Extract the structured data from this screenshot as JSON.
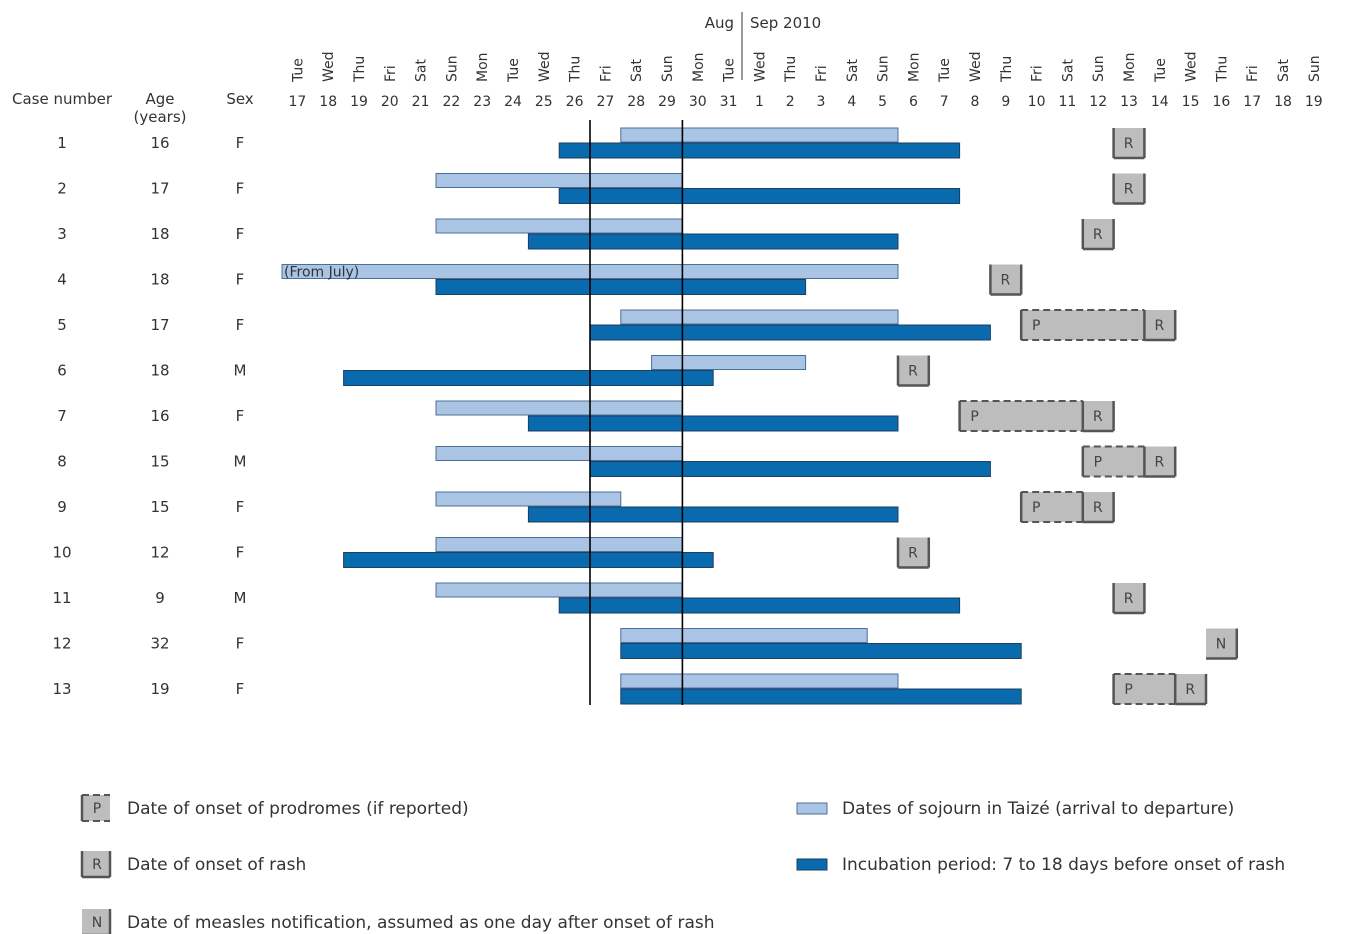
{
  "chart_data": {
    "type": "gantt",
    "month_labels": [
      "Aug",
      "Sep 2010"
    ],
    "columns": {
      "case": "Case number",
      "age": "Age\n(years)",
      "sex": "Sex"
    },
    "days": [
      {
        "wd": "Tue",
        "d": "17"
      },
      {
        "wd": "Wed",
        "d": "18"
      },
      {
        "wd": "Thu",
        "d": "19"
      },
      {
        "wd": "Fri",
        "d": "20"
      },
      {
        "wd": "Sat",
        "d": "21"
      },
      {
        "wd": "Sun",
        "d": "22"
      },
      {
        "wd": "Mon",
        "d": "23"
      },
      {
        "wd": "Tue",
        "d": "24"
      },
      {
        "wd": "Wed",
        "d": "25"
      },
      {
        "wd": "Thu",
        "d": "26"
      },
      {
        "wd": "Fri",
        "d": "27"
      },
      {
        "wd": "Sat",
        "d": "28"
      },
      {
        "wd": "Sun",
        "d": "29"
      },
      {
        "wd": "Mon",
        "d": "30"
      },
      {
        "wd": "Tue",
        "d": "31"
      },
      {
        "wd": "Wed",
        "d": "1"
      },
      {
        "wd": "Thu",
        "d": "2"
      },
      {
        "wd": "Fri",
        "d": "3"
      },
      {
        "wd": "Sat",
        "d": "4"
      },
      {
        "wd": "Sun",
        "d": "5"
      },
      {
        "wd": "Mon",
        "d": "6"
      },
      {
        "wd": "Tue",
        "d": "7"
      },
      {
        "wd": "Wed",
        "d": "8"
      },
      {
        "wd": "Thu",
        "d": "9"
      },
      {
        "wd": "Fri",
        "d": "10"
      },
      {
        "wd": "Sat",
        "d": "11"
      },
      {
        "wd": "Sun",
        "d": "12"
      },
      {
        "wd": "Mon",
        "d": "13"
      },
      {
        "wd": "Tue",
        "d": "14"
      },
      {
        "wd": "Wed",
        "d": "15"
      },
      {
        "wd": "Thu",
        "d": "16"
      },
      {
        "wd": "Fri",
        "d": "17"
      },
      {
        "wd": "Sat",
        "d": "18"
      },
      {
        "wd": "Sun",
        "d": "19"
      }
    ],
    "reference_lines_between_days": [
      [
        9,
        10
      ],
      [
        12,
        13
      ]
    ],
    "cases": [
      {
        "case": "1",
        "age": "16",
        "sex": "F",
        "sojourn": [
          11,
          19
        ],
        "incubation": [
          9,
          21
        ],
        "events": [
          {
            "type": "R",
            "day": 27
          }
        ]
      },
      {
        "case": "2",
        "age": "17",
        "sex": "F",
        "sojourn": [
          5,
          12
        ],
        "incubation": [
          9,
          21
        ],
        "events": [
          {
            "type": "R",
            "day": 27
          }
        ]
      },
      {
        "case": "3",
        "age": "18",
        "sex": "F",
        "sojourn": [
          5,
          12
        ],
        "incubation": [
          8,
          19
        ],
        "events": [
          {
            "type": "R",
            "day": 26
          }
        ]
      },
      {
        "case": "4",
        "age": "18",
        "sex": "F",
        "sojourn": [
          0,
          19
        ],
        "sojourn_note": "(From July)",
        "incubation": [
          5,
          16
        ],
        "events": [
          {
            "type": "R",
            "day": 23
          }
        ]
      },
      {
        "case": "5",
        "age": "17",
        "sex": "F",
        "sojourn": [
          11,
          19
        ],
        "incubation": [
          10,
          22
        ],
        "events": [
          {
            "type": "P",
            "day": 24,
            "to": 27
          },
          {
            "type": "R",
            "day": 28
          }
        ]
      },
      {
        "case": "6",
        "age": "18",
        "sex": "M",
        "sojourn": [
          12,
          16
        ],
        "incubation": [
          2,
          13
        ],
        "events": [
          {
            "type": "R",
            "day": 20
          }
        ]
      },
      {
        "case": "7",
        "age": "16",
        "sex": "F",
        "sojourn": [
          5,
          12
        ],
        "incubation": [
          8,
          19
        ],
        "events": [
          {
            "type": "P",
            "day": 22,
            "to": 25
          },
          {
            "type": "R",
            "day": 26
          }
        ]
      },
      {
        "case": "8",
        "age": "15",
        "sex": "M",
        "sojourn": [
          5,
          12
        ],
        "incubation": [
          10,
          22
        ],
        "events": [
          {
            "type": "P",
            "day": 26,
            "to": 27
          },
          {
            "type": "R",
            "day": 28
          }
        ]
      },
      {
        "case": "9",
        "age": "15",
        "sex": "F",
        "sojourn": [
          5,
          10
        ],
        "incubation": [
          8,
          19
        ],
        "events": [
          {
            "type": "P",
            "day": 24,
            "to": 25
          },
          {
            "type": "R",
            "day": 26
          }
        ]
      },
      {
        "case": "10",
        "age": "12",
        "sex": "F",
        "sojourn": [
          5,
          12
        ],
        "incubation": [
          2,
          13
        ],
        "events": [
          {
            "type": "R",
            "day": 20
          }
        ]
      },
      {
        "case": "11",
        "age": "9",
        "sex": "M",
        "sojourn": [
          5,
          12
        ],
        "incubation": [
          9,
          21
        ],
        "events": [
          {
            "type": "R",
            "day": 27
          }
        ]
      },
      {
        "case": "12",
        "age": "32",
        "sex": "F",
        "sojourn": [
          11,
          18
        ],
        "incubation": [
          11,
          23
        ],
        "events": [
          {
            "type": "N",
            "day": 30
          }
        ]
      },
      {
        "case": "13",
        "age": "19",
        "sex": "F",
        "sojourn": [
          11,
          19
        ],
        "incubation": [
          11,
          23
        ],
        "events": [
          {
            "type": "P",
            "day": 27,
            "to": 28
          },
          {
            "type": "R",
            "day": 29
          }
        ]
      }
    ],
    "legend": [
      {
        "key": "P",
        "label": "Date of onset of prodromes (if reported)"
      },
      {
        "key": "R",
        "label": "Date of onset of rash"
      },
      {
        "key": "N",
        "label": "Date of measles notification, assumed as one day after onset of rash"
      },
      {
        "key": "sojourn",
        "label": "Dates of sojourn in Taizé (arrival to departure)"
      },
      {
        "key": "incubation",
        "label": "Incubation period: 7 to 18 days before onset of rash"
      }
    ],
    "colors": {
      "sojourn": "#a9c4e4",
      "incubation": "#0a6aae",
      "event_box": "#bdbdbd",
      "event_border": "#555555",
      "reference_line": "#000000"
    }
  }
}
